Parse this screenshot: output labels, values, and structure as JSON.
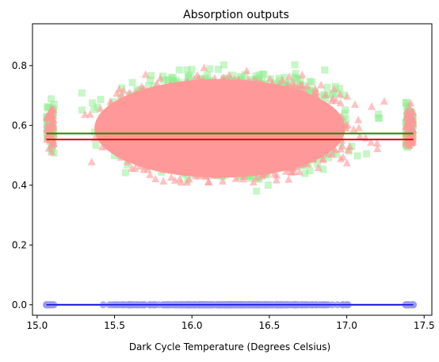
{
  "chart_data": {
    "type": "scatter",
    "title": "Absorption outputs",
    "xlabel": "Dark Cycle Temperature (Degrees Celsius)",
    "ylabel": "",
    "xlim": [
      14.97,
      17.55
    ],
    "ylim": [
      -0.035,
      0.94
    ],
    "x_ticks": [
      15.0,
      15.5,
      16.0,
      16.5,
      17.0,
      17.5
    ],
    "x_tick_labels": [
      "15.0",
      "15.5",
      "16.0",
      "16.5",
      "17.0",
      "17.5"
    ],
    "y_ticks": [
      0.0,
      0.2,
      0.4,
      0.6,
      0.8
    ],
    "y_tick_labels": [
      "0.0",
      "0.2",
      "0.4",
      "0.6",
      "0.8"
    ],
    "grid": false,
    "legend": "none",
    "x_range_of_points": [
      15.06,
      17.43
    ],
    "series": [
      {
        "marker": "square",
        "color": "#90ee90",
        "alpha": 0.5,
        "y_center": 0.6,
        "y_spread_center": 0.27,
        "y_spread_edge": 0.08,
        "y_max": 0.9,
        "y_min": 0.33
      },
      {
        "marker": "triangle",
        "color": "#ff9999",
        "alpha": 0.6,
        "y_center": 0.59,
        "y_spread_center": 0.26,
        "y_spread_edge": 0.08,
        "y_max": 0.87,
        "y_min": 0.31
      },
      {
        "marker": "circle",
        "color": "#9999ee",
        "alpha": 0.8,
        "y_value": 0.0
      }
    ],
    "reference_lines": [
      {
        "color": "#2e7d00",
        "y": 0.573,
        "x": [
          15.06,
          17.43
        ]
      },
      {
        "color": "#e00000",
        "y": 0.553,
        "x": [
          15.06,
          17.43
        ]
      },
      {
        "color": "#1010dd",
        "y": 0.0,
        "x": [
          15.06,
          17.43
        ]
      }
    ]
  }
}
